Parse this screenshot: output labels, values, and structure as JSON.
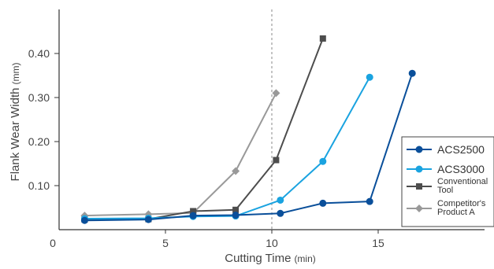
{
  "chart_data": {
    "type": "line",
    "title": "",
    "xlabel": "Cutting Time",
    "xlabel_unit": "(min)",
    "ylabel": "Flank Wear Width",
    "ylabel_unit": "(mm)",
    "xlim": [
      0,
      20
    ],
    "ylim": [
      0,
      0.5
    ],
    "x_ticks": [
      "0",
      "5",
      "10",
      "15"
    ],
    "x_tick_values": [
      0,
      5,
      10,
      15
    ],
    "y_ticks": [
      "0.10",
      "0.20",
      "0.30",
      "0.40"
    ],
    "y_tick_values": [
      0.1,
      0.2,
      0.3,
      0.4
    ],
    "reference_line": {
      "x": 10,
      "style": "dashed"
    },
    "grid": false,
    "legend_position": "right",
    "series": [
      {
        "name": "ACS2500",
        "legend_lines": [
          "ACS2500"
        ],
        "color": "#0a4f9a",
        "marker": "circle",
        "x": [
          1.2,
          4.2,
          6.3,
          8.3,
          10.4,
          12.4,
          14.6,
          16.6
        ],
        "y": [
          0.021,
          0.023,
          0.032,
          0.033,
          0.037,
          0.06,
          0.064,
          0.355
        ]
      },
      {
        "name": "ACS3000",
        "legend_lines": [
          "ACS3000"
        ],
        "color": "#1aa3e0",
        "marker": "circle",
        "x": [
          1.2,
          4.2,
          6.3,
          8.3,
          10.4,
          12.4,
          14.6
        ],
        "y": [
          0.025,
          0.026,
          0.03,
          0.031,
          0.067,
          0.155,
          0.346
        ]
      },
      {
        "name": "Conventional Tool",
        "legend_lines": [
          "Conventional",
          "Tool"
        ],
        "color": "#4d4d4d",
        "marker": "square",
        "x": [
          1.2,
          4.2,
          6.3,
          8.3,
          10.2,
          12.4
        ],
        "y": [
          0.023,
          0.024,
          0.042,
          0.045,
          0.158,
          0.434
        ]
      },
      {
        "name": "Competitor's Product A",
        "legend_lines": [
          "Competitor's",
          "Product A"
        ],
        "color": "#999999",
        "marker": "diamond",
        "x": [
          1.2,
          4.2,
          6.3,
          8.3,
          10.2
        ],
        "y": [
          0.032,
          0.035,
          0.038,
          0.133,
          0.31
        ]
      }
    ]
  }
}
